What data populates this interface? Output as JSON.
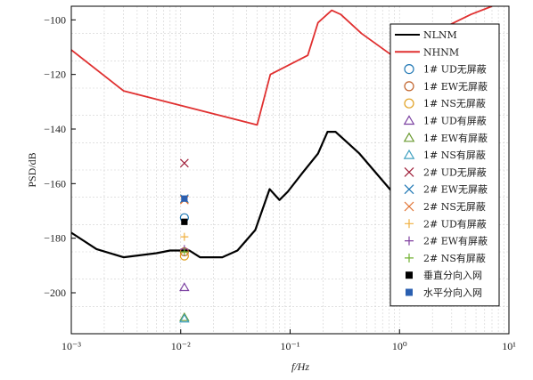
{
  "chart_data": {
    "type": "line",
    "xlabel": "f/Hz",
    "ylabel": "PSD/dB",
    "xscale": "log",
    "xlim": [
      0.001,
      10
    ],
    "ylim": [
      -215,
      -95
    ],
    "x_ticks": [
      {
        "value": 0.001,
        "label": "10⁻³"
      },
      {
        "value": 0.01,
        "label": "10⁻²"
      },
      {
        "value": 0.1,
        "label": "10⁻¹"
      },
      {
        "value": 1,
        "label": "10⁰"
      },
      {
        "value": 10,
        "label": "10¹"
      }
    ],
    "y_ticks": [
      -100,
      -120,
      -140,
      -160,
      -180,
      -200
    ],
    "grid": true,
    "legend_position": "right",
    "lines": [
      {
        "name": "NLNM",
        "color": "#000000",
        "points": [
          [
            0.001,
            -178
          ],
          [
            0.0017,
            -184
          ],
          [
            0.003,
            -187
          ],
          [
            0.006,
            -185.5
          ],
          [
            0.008,
            -184.5
          ],
          [
            0.012,
            -184.5
          ],
          [
            0.015,
            -187
          ],
          [
            0.024,
            -187
          ],
          [
            0.033,
            -184.5
          ],
          [
            0.048,
            -177
          ],
          [
            0.065,
            -162
          ],
          [
            0.08,
            -166
          ],
          [
            0.095,
            -163
          ],
          [
            0.13,
            -156
          ],
          [
            0.18,
            -149
          ],
          [
            0.22,
            -141
          ],
          [
            0.26,
            -141
          ],
          [
            0.43,
            -149
          ],
          [
            0.9,
            -164
          ]
        ]
      },
      {
        "name": "NHNM",
        "color": "#e03030",
        "points": [
          [
            0.001,
            -111
          ],
          [
            0.003,
            -126
          ],
          [
            0.05,
            -138.5
          ],
          [
            0.066,
            -120
          ],
          [
            0.145,
            -113
          ],
          [
            0.18,
            -101
          ],
          [
            0.24,
            -96.5
          ],
          [
            0.29,
            -98
          ],
          [
            0.45,
            -105
          ],
          [
            1.0,
            -115
          ],
          [
            2.5,
            -103
          ],
          [
            4.5,
            -98
          ],
          [
            7.0,
            -95
          ]
        ]
      }
    ],
    "series": [
      {
        "name": "1# UD无屏蔽",
        "marker": "circle",
        "color": "#1f77b4",
        "points": [
          [
            0.0108,
            -172.5
          ]
        ]
      },
      {
        "name": "1# EW无屏蔽",
        "marker": "circle",
        "color": "#c0622a",
        "points": [
          [
            0.0108,
            -185
          ]
        ]
      },
      {
        "name": "1# NS无屏蔽",
        "marker": "circle",
        "color": "#e0a020",
        "points": [
          [
            0.0108,
            -186.5
          ]
        ]
      },
      {
        "name": "1# UD有屏蔽",
        "marker": "triangle",
        "color": "#7a3fa0",
        "points": [
          [
            0.0108,
            -198
          ]
        ]
      },
      {
        "name": "1# EW有屏蔽",
        "marker": "triangle",
        "color": "#6a9a30",
        "points": [
          [
            0.0108,
            -209
          ]
        ]
      },
      {
        "name": "1# NS有屏蔽",
        "marker": "triangle",
        "color": "#40a0c0",
        "points": [
          [
            0.0108,
            -209.5
          ]
        ]
      },
      {
        "name": "2# UD无屏蔽",
        "marker": "x",
        "color": "#a0203a",
        "points": [
          [
            0.0108,
            -152.5
          ]
        ]
      },
      {
        "name": "2# EW无屏蔽",
        "marker": "x",
        "color": "#1f77b4",
        "points": [
          [
            0.0108,
            -165.5
          ]
        ]
      },
      {
        "name": "2# NS无屏蔽",
        "marker": "x",
        "color": "#e07030",
        "points": [
          [
            0.0108,
            -166
          ]
        ]
      },
      {
        "name": "2# UD有屏蔽",
        "marker": "plus",
        "color": "#f0b040",
        "points": [
          [
            0.0108,
            -179.5
          ]
        ]
      },
      {
        "name": "2# EW有屏蔽",
        "marker": "plus",
        "color": "#8040a0",
        "points": [
          [
            0.0108,
            -184
          ]
        ]
      },
      {
        "name": "2# NS有屏蔽",
        "marker": "plus",
        "color": "#70b030",
        "points": [
          [
            0.0108,
            -185
          ]
        ]
      },
      {
        "name": "垂直分向入网",
        "marker": "square",
        "color": "#000000",
        "points": [
          [
            0.0108,
            -174
          ]
        ]
      },
      {
        "name": "水平分向入网",
        "marker": "square",
        "color": "#2a5fb0",
        "points": [
          [
            0.0108,
            -165.5
          ]
        ]
      }
    ]
  }
}
